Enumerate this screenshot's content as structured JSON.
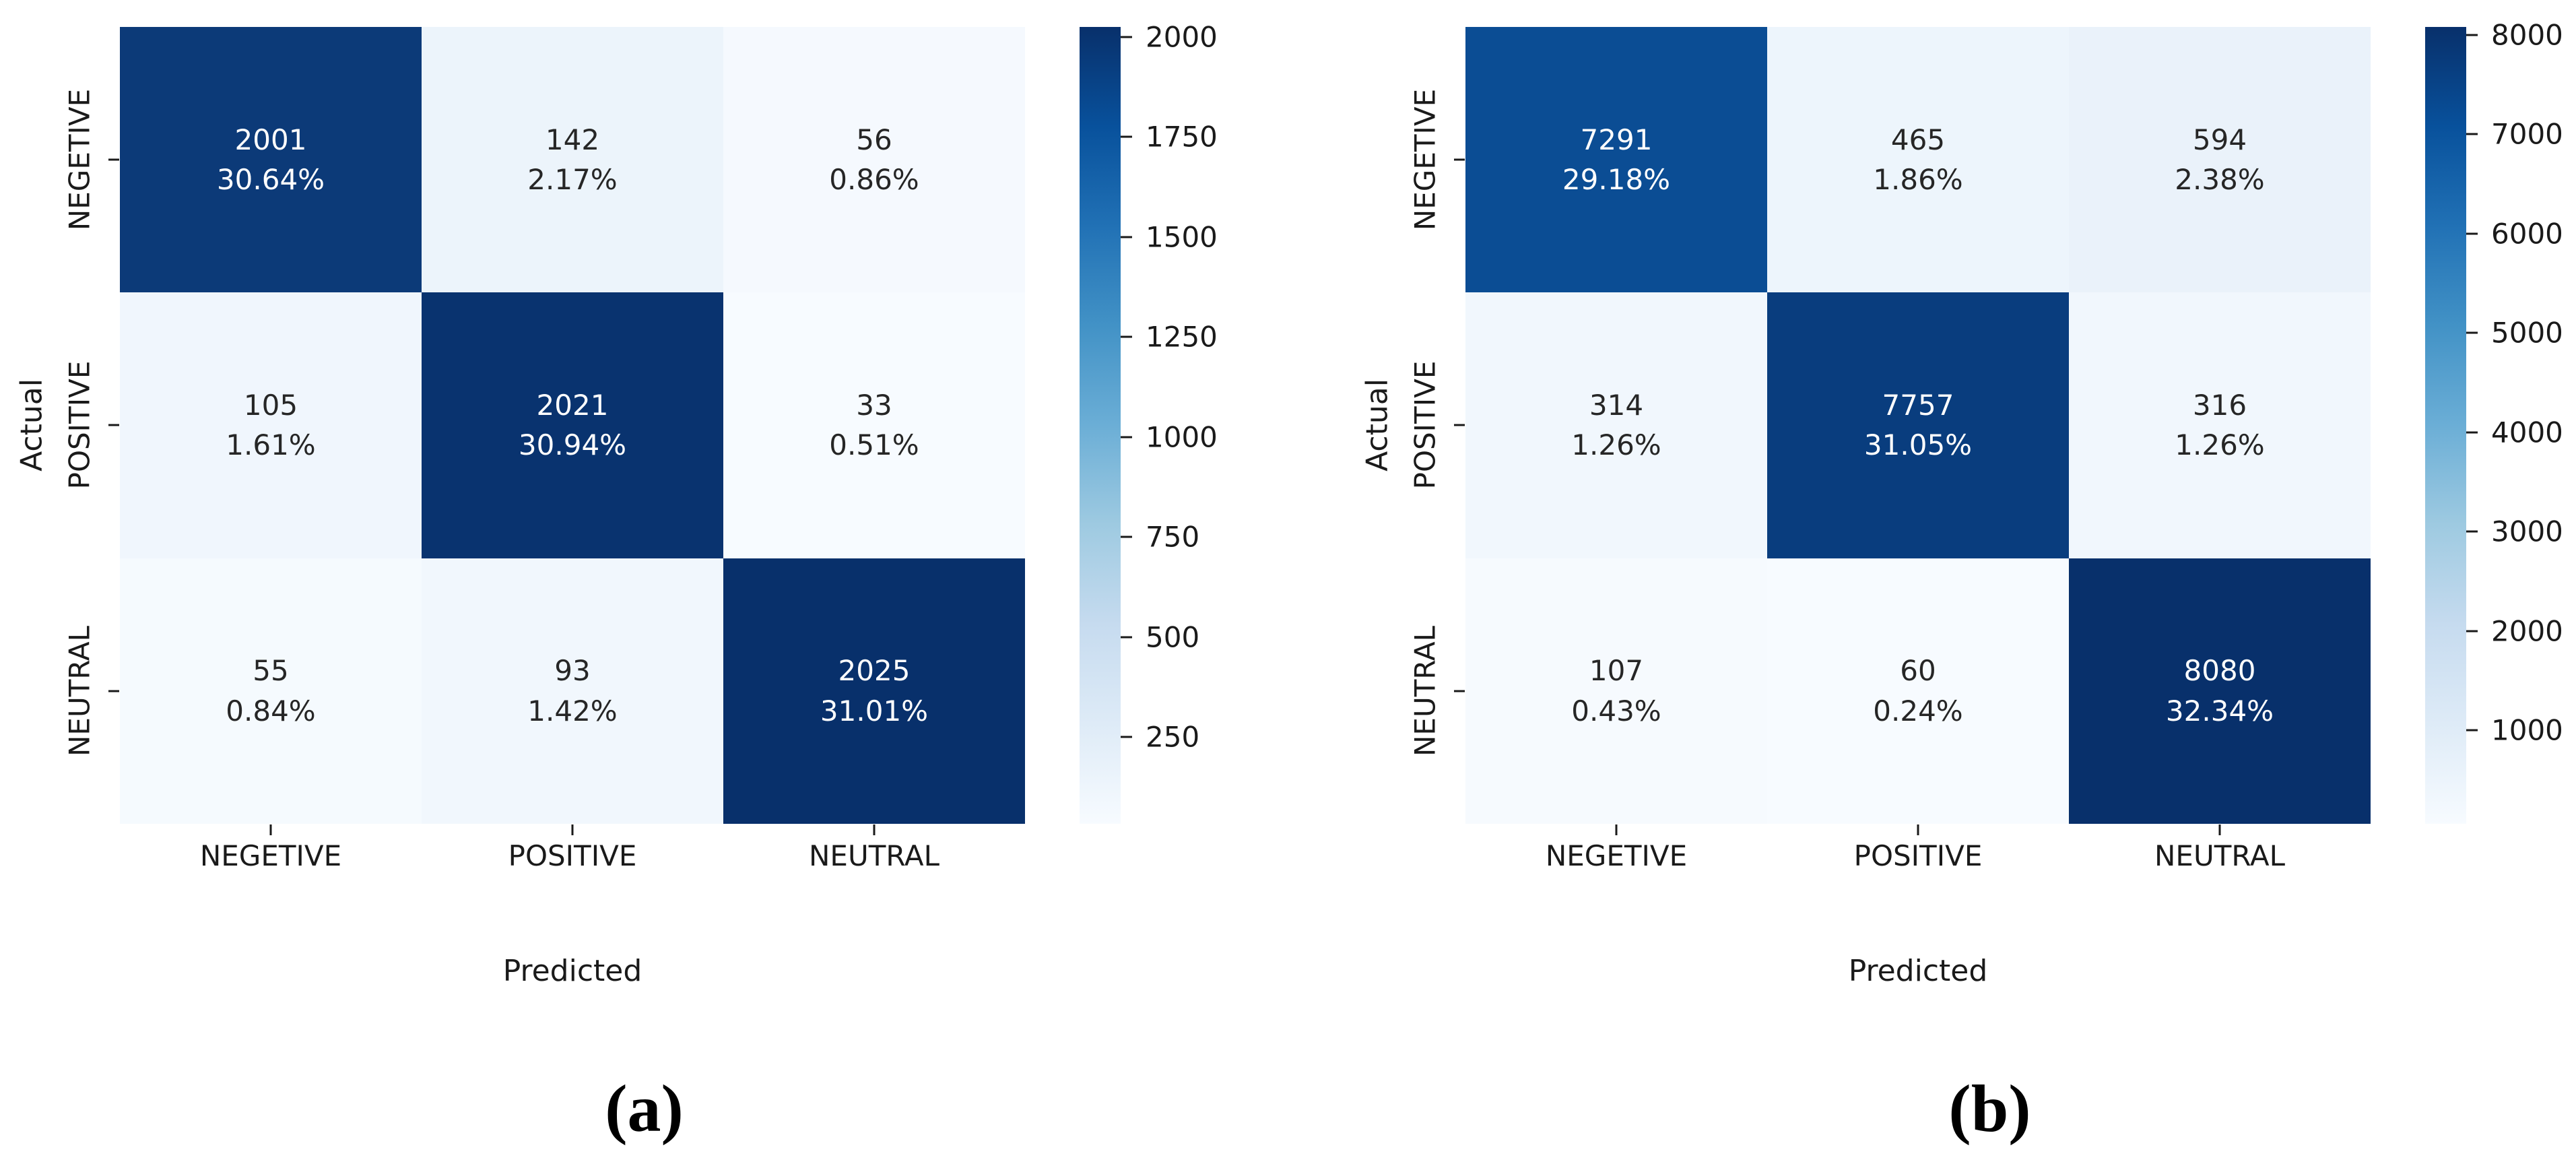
{
  "figures": [
    {
      "caption": "(a)",
      "xlabel": "Predicted",
      "ylabel": "Actual",
      "x_categories": [
        "NEGETIVE",
        "POSITIVE",
        "NEUTRAL"
      ],
      "y_categories": [
        "NEGETIVE",
        "POSITIVE",
        "NEUTRAL"
      ],
      "cells": [
        {
          "count": "2001",
          "pct": "30.64%",
          "bg": "#0c3a78",
          "fg": "#ffffff"
        },
        {
          "count": "142",
          "pct": "2.17%",
          "bg": "#ecf4fb",
          "fg": "#262626"
        },
        {
          "count": "56",
          "pct": "0.86%",
          "bg": "#f5f9fe",
          "fg": "#262626"
        },
        {
          "count": "105",
          "pct": "1.61%",
          "bg": "#f0f6fd",
          "fg": "#262626"
        },
        {
          "count": "2021",
          "pct": "30.94%",
          "bg": "#09336f",
          "fg": "#ffffff"
        },
        {
          "count": "33",
          "pct": "0.51%",
          "bg": "#f7fbff",
          "fg": "#262626"
        },
        {
          "count": "55",
          "pct": "0.84%",
          "bg": "#f5fafe",
          "fg": "#262626"
        },
        {
          "count": "93",
          "pct": "1.42%",
          "bg": "#f1f7fd",
          "fg": "#262626"
        },
        {
          "count": "2025",
          "pct": "31.01%",
          "bg": "#08306b",
          "fg": "#ffffff"
        }
      ],
      "colorbar": {
        "min": 33,
        "max": 2025,
        "ticks": [
          250,
          500,
          750,
          1000,
          1250,
          1500,
          1750,
          2000
        ]
      }
    },
    {
      "caption": "(b)",
      "xlabel": "Predicted",
      "ylabel": "Actual",
      "x_categories": [
        "NEGETIVE",
        "POSITIVE",
        "NEUTRAL"
      ],
      "y_categories": [
        "NEGETIVE",
        "POSITIVE",
        "NEUTRAL"
      ],
      "cells": [
        {
          "count": "7291",
          "pct": "29.18%",
          "bg": "#0b4d94",
          "fg": "#ffffff"
        },
        {
          "count": "465",
          "pct": "1.86%",
          "bg": "#edf5fc",
          "fg": "#262626"
        },
        {
          "count": "594",
          "pct": "2.38%",
          "bg": "#eaf2fa",
          "fg": "#262626"
        },
        {
          "count": "314",
          "pct": "1.26%",
          "bg": "#f1f7fd",
          "fg": "#262626"
        },
        {
          "count": "7757",
          "pct": "31.05%",
          "bg": "#093d7e",
          "fg": "#ffffff"
        },
        {
          "count": "316",
          "pct": "1.26%",
          "bg": "#f1f7fd",
          "fg": "#262626"
        },
        {
          "count": "107",
          "pct": "0.43%",
          "bg": "#f6fafe",
          "fg": "#262626"
        },
        {
          "count": "60",
          "pct": "0.24%",
          "bg": "#f7fbff",
          "fg": "#262626"
        },
        {
          "count": "8080",
          "pct": "32.34%",
          "bg": "#08306b",
          "fg": "#ffffff"
        }
      ],
      "colorbar": {
        "min": 60,
        "max": 8080,
        "ticks": [
          1000,
          2000,
          3000,
          4000,
          5000,
          6000,
          7000,
          8000
        ]
      }
    }
  ],
  "colors": {
    "colormap_low": "#f7fbff",
    "colormap_high": "#08306b",
    "axis_text": "#1a1a1a",
    "annot_dark": "#262626",
    "annot_light": "#ffffff"
  },
  "chart_data": [
    {
      "type": "heatmap",
      "title": "(a)",
      "xlabel": "Predicted",
      "ylabel": "Actual",
      "x_categories": [
        "NEGETIVE",
        "POSITIVE",
        "NEUTRAL"
      ],
      "y_categories": [
        "NEGETIVE",
        "POSITIVE",
        "NEUTRAL"
      ],
      "values": [
        [
          2001,
          142,
          56
        ],
        [
          105,
          2021,
          33
        ],
        [
          55,
          93,
          2025
        ]
      ],
      "percent_labels": [
        [
          "30.64%",
          "2.17%",
          "0.86%"
        ],
        [
          "1.61%",
          "30.94%",
          "0.51%"
        ],
        [
          "0.84%",
          "1.42%",
          "31.01%"
        ]
      ],
      "colormap": "Blues",
      "vmin": 33,
      "vmax": 2025,
      "colorbar_ticks": [
        250,
        500,
        750,
        1000,
        1250,
        1500,
        1750,
        2000
      ],
      "legend_position": "right-colorbar",
      "grid": false
    },
    {
      "type": "heatmap",
      "title": "(b)",
      "xlabel": "Predicted",
      "ylabel": "Actual",
      "x_categories": [
        "NEGETIVE",
        "POSITIVE",
        "NEUTRAL"
      ],
      "y_categories": [
        "NEGETIVE",
        "POSITIVE",
        "NEUTRAL"
      ],
      "values": [
        [
          7291,
          465,
          594
        ],
        [
          314,
          7757,
          316
        ],
        [
          107,
          60,
          8080
        ]
      ],
      "percent_labels": [
        [
          "29.18%",
          "1.86%",
          "2.38%"
        ],
        [
          "1.26%",
          "31.05%",
          "1.26%"
        ],
        [
          "0.43%",
          "0.24%",
          "32.34%"
        ]
      ],
      "colormap": "Blues",
      "vmin": 60,
      "vmax": 8080,
      "colorbar_ticks": [
        1000,
        2000,
        3000,
        4000,
        5000,
        6000,
        7000,
        8000
      ],
      "legend_position": "right-colorbar",
      "grid": false
    }
  ]
}
